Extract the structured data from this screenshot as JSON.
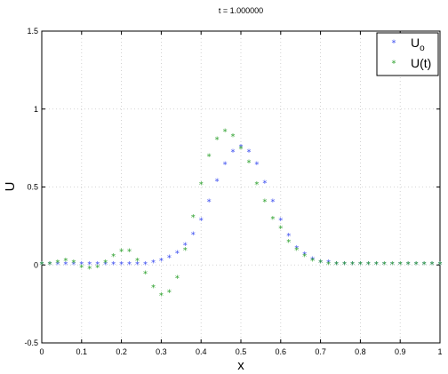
{
  "chart_data": {
    "type": "scatter",
    "title": "t = 1.000000",
    "xlabel": "x",
    "ylabel": "U",
    "xlim": [
      0,
      1
    ],
    "ylim": [
      -0.5,
      1.5
    ],
    "xticks": [
      0,
      0.1,
      0.2,
      0.3,
      0.4,
      0.5,
      0.6,
      0.7,
      0.8,
      0.9,
      1
    ],
    "yticks": [
      -0.5,
      0,
      0.5,
      1,
      1.5
    ],
    "xtick_labels": [
      "0",
      "0.1",
      "0.2",
      "0.3",
      "0.4",
      "0.5",
      "0.6",
      "0.7",
      "0.8",
      "0.9",
      "1"
    ],
    "ytick_labels": [
      "-0.5",
      "0",
      "0.5",
      "1",
      "1.5"
    ],
    "grid": true,
    "legend_position": "top-right",
    "legend": {
      "main": [
        "U",
        "U"
      ],
      "subscript": [
        "o",
        ""
      ],
      "suffix": [
        "",
        "(t)"
      ]
    },
    "series": [
      {
        "name": "Uo",
        "color": "#3a4cf0",
        "marker": "*",
        "x": [
          0,
          0.02,
          0.04,
          0.06,
          0.08,
          0.1,
          0.12,
          0.14,
          0.16,
          0.18,
          0.2,
          0.22,
          0.24,
          0.26,
          0.28,
          0.3,
          0.32,
          0.34,
          0.36,
          0.38,
          0.4,
          0.42,
          0.44,
          0.46,
          0.48,
          0.5,
          0.52,
          0.54,
          0.56,
          0.58,
          0.6,
          0.62,
          0.64,
          0.66,
          0.68,
          0.7,
          0.72,
          0.74,
          0.76,
          0.78,
          0.8,
          0.82,
          0.84,
          0.86,
          0.88,
          0.9,
          0.92,
          0.94,
          0.96,
          0.98,
          1.0
        ],
        "y": [
          0,
          0,
          0,
          0,
          0,
          0,
          0,
          0,
          0,
          0,
          0,
          0,
          0,
          0,
          0.01,
          0.02,
          0.04,
          0.07,
          0.12,
          0.19,
          0.28,
          0.4,
          0.53,
          0.64,
          0.72,
          0.75,
          0.72,
          0.64,
          0.52,
          0.4,
          0.28,
          0.18,
          0.1,
          0.06,
          0.03,
          0.01,
          0.01,
          0,
          0,
          0,
          0,
          0,
          0,
          0,
          0,
          0,
          0,
          0,
          0,
          0,
          0
        ]
      },
      {
        "name": "U(t)",
        "color": "#2ca02c",
        "marker": "*",
        "x": [
          0,
          0.02,
          0.04,
          0.06,
          0.08,
          0.1,
          0.12,
          0.14,
          0.16,
          0.18,
          0.2,
          0.22,
          0.24,
          0.26,
          0.28,
          0.3,
          0.32,
          0.34,
          0.36,
          0.38,
          0.4,
          0.42,
          0.44,
          0.46,
          0.48,
          0.5,
          0.52,
          0.54,
          0.56,
          0.58,
          0.6,
          0.62,
          0.64,
          0.66,
          0.68,
          0.7,
          0.72,
          0.74,
          0.76,
          0.78,
          0.8,
          0.82,
          0.84,
          0.86,
          0.88,
          0.9,
          0.92,
          0.94,
          0.96,
          0.98,
          1.0
        ],
        "y": [
          0,
          0,
          0.01,
          0.02,
          0.01,
          -0.02,
          -0.03,
          -0.02,
          0.01,
          0.05,
          0.08,
          0.08,
          0.02,
          -0.06,
          -0.15,
          -0.2,
          -0.18,
          -0.09,
          0.09,
          0.3,
          0.51,
          0.69,
          0.8,
          0.85,
          0.82,
          0.74,
          0.65,
          0.51,
          0.4,
          0.29,
          0.23,
          0.14,
          0.09,
          0.05,
          0.02,
          0.01,
          0,
          0,
          0,
          0,
          0,
          0,
          0,
          0,
          0,
          0,
          0,
          0,
          0,
          0,
          0
        ]
      }
    ]
  }
}
